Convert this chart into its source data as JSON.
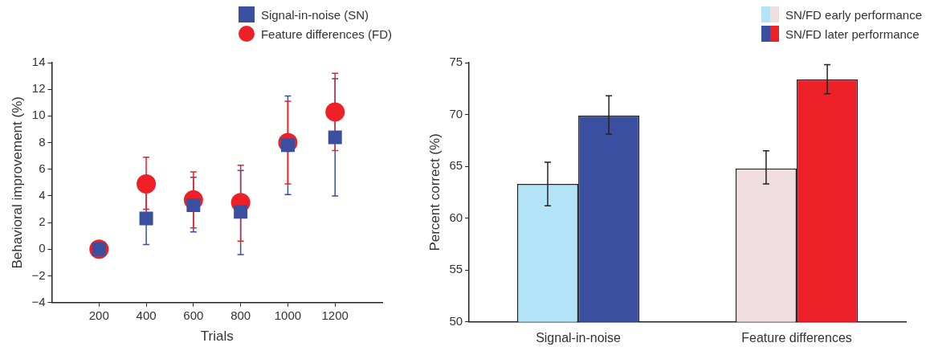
{
  "chart_data": [
    {
      "type": "scatter",
      "xlabel": "Trials",
      "ylabel": "Behavioral improvement (%)",
      "x": [
        200,
        400,
        600,
        800,
        1000,
        1200
      ],
      "xlim": [
        0,
        1400
      ],
      "xticks": [
        200,
        400,
        600,
        800,
        1000,
        1200
      ],
      "ylim": [
        -4,
        14
      ],
      "yticks": [
        {
          "value": -4,
          "label": "−4"
        },
        {
          "value": -2,
          "label": "−2"
        },
        0,
        2,
        4,
        6,
        8,
        10,
        12,
        14
      ],
      "grid": false,
      "legend": "top right",
      "series": [
        {
          "name": "Signal-in-noise (SN)",
          "color": "#3a4fa0",
          "marker": "square",
          "values": [
            0,
            2.3,
            3.3,
            2.8,
            7.8,
            8.4
          ],
          "errors": [
            null,
            [
              0.35,
              4.3
            ],
            [
              1.3,
              5.4
            ],
            [
              -0.4,
              5.9
            ],
            [
              4.1,
              11.5
            ],
            [
              4.0,
              12.8
            ]
          ]
        },
        {
          "name": "Feature differences (FD)",
          "color": "#ee2027",
          "marker": "circle",
          "values": [
            0,
            4.9,
            3.7,
            3.5,
            8.0,
            10.3
          ],
          "errors": [
            null,
            [
              3.0,
              6.9
            ],
            [
              1.6,
              5.8
            ],
            [
              0.6,
              6.3
            ],
            [
              4.9,
              11.1
            ],
            [
              7.4,
              13.2
            ]
          ]
        }
      ]
    },
    {
      "type": "bar",
      "ylabel": "Percent correct (%)",
      "categories": [
        "Signal-in-noise",
        "Feature differences"
      ],
      "ylim": [
        50,
        75
      ],
      "yticks": [
        50,
        55,
        60,
        65,
        70,
        75
      ],
      "grid": false,
      "legend": "top right",
      "series": [
        {
          "name": "SN/FD early performance",
          "colors": [
            "#b3e3f6",
            "#f0dde0"
          ],
          "values": [
            63.3,
            64.8
          ],
          "errors": [
            [
              61.2,
              65.4
            ],
            [
              63.3,
              66.5
            ]
          ]
        },
        {
          "name": "SN/FD later performance",
          "colors": [
            "#3a4fa0",
            "#ee2027"
          ],
          "values": [
            69.9,
            73.4
          ],
          "errors": [
            [
              68.1,
              71.8
            ],
            [
              72.0,
              74.8
            ]
          ]
        }
      ]
    }
  ]
}
